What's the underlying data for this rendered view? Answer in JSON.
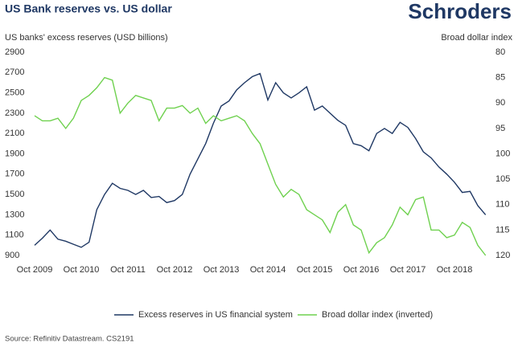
{
  "brand": "Schroders",
  "source": "Source: Refinitiv Datastream. CS2191",
  "chart_data": {
    "type": "line",
    "title": "US Bank reserves vs. US dollar",
    "y_label": "US banks' excess reserves (USD billions)",
    "y2_label": "Broad dollar index",
    "categories": [
      "Oct 2009",
      null,
      null,
      null,
      null,
      null,
      "Oct 2010",
      null,
      null,
      null,
      null,
      null,
      "Oct 2011",
      null,
      null,
      null,
      null,
      null,
      "Oct 2012",
      null,
      null,
      null,
      null,
      null,
      "Oct 2013",
      null,
      null,
      null,
      null,
      null,
      "Oct 2014",
      null,
      null,
      null,
      null,
      null,
      "Oct 2015",
      null,
      null,
      null,
      null,
      null,
      "Oct 2016",
      null,
      null,
      null,
      null,
      null,
      "Oct 2017",
      null,
      null,
      null,
      null,
      null,
      "Oct 2018",
      null,
      null,
      null,
      null
    ],
    "series": [
      {
        "name": "Excess reserves in US financial system",
        "color": "#1f3864",
        "axis": "y",
        "values": [
          1000,
          1070,
          1150,
          1060,
          1040,
          1010,
          980,
          1030,
          1350,
          1500,
          1610,
          1560,
          1540,
          1500,
          1540,
          1470,
          1480,
          1420,
          1440,
          1500,
          1700,
          1850,
          2000,
          2200,
          2370,
          2420,
          2530,
          2600,
          2660,
          2690,
          2430,
          2600,
          2500,
          2450,
          2500,
          2560,
          2330,
          2370,
          2300,
          2230,
          2180,
          2000,
          1980,
          1930,
          2100,
          2150,
          2100,
          2210,
          2160,
          2050,
          1920,
          1860,
          1770,
          1700,
          1620,
          1520,
          1530,
          1390,
          1300
        ]
      },
      {
        "name": "Broad dollar index (inverted)",
        "color": "#6fd14f",
        "axis": "y2",
        "values": [
          92.5,
          93.5,
          93.5,
          93,
          95,
          93,
          89.5,
          88.5,
          87,
          85,
          85.5,
          92,
          90,
          88.5,
          89,
          89.5,
          93.5,
          91,
          91,
          90.5,
          92,
          91,
          94,
          92.5,
          93.5,
          93,
          92.5,
          93.5,
          96,
          98,
          102,
          106,
          108.5,
          107,
          108,
          111,
          112,
          113,
          115.5,
          111.5,
          110,
          114,
          115,
          119.5,
          117.5,
          116.5,
          114,
          110.5,
          112,
          109,
          108.5,
          115,
          115,
          116.5,
          116,
          113.5,
          114.5,
          118,
          120
        ]
      }
    ],
    "ylim": [
      900,
      2900
    ],
    "yticks": [
      900,
      1100,
      1300,
      1500,
      1700,
      1900,
      2100,
      2300,
      2500,
      2700,
      2900
    ],
    "y2lim": [
      80,
      120
    ],
    "y2ticks": [
      80,
      85,
      90,
      95,
      100,
      105,
      110,
      115,
      120
    ],
    "y2_inverted": true,
    "grid": false
  }
}
